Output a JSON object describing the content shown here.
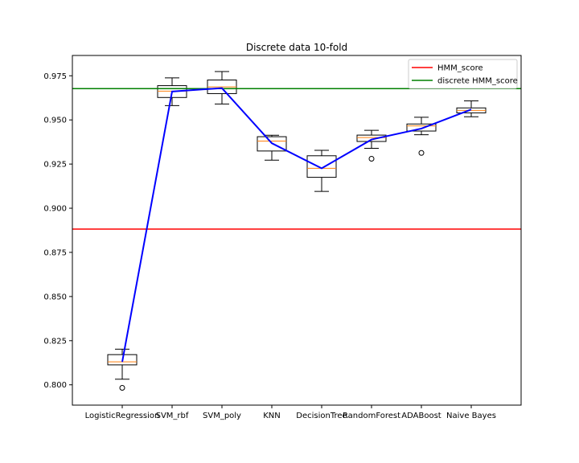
{
  "chart_data": {
    "type": "box",
    "title": "Discrete data 10-fold",
    "xlabel": "",
    "ylabel": "",
    "ylim": [
      0.7885,
      0.9865
    ],
    "yticks": [
      0.8,
      0.825,
      0.85,
      0.875,
      0.9,
      0.925,
      0.95,
      0.975
    ],
    "ytick_labels": [
      "0.800",
      "0.825",
      "0.850",
      "0.875",
      "0.900",
      "0.925",
      "0.950",
      "0.975"
    ],
    "categories": [
      "LogisticRegression",
      "SVM_rbf",
      "SVM_poly",
      "KNN",
      "DecisionTree",
      "RandomForest",
      "ADABoost",
      "Naive Bayes"
    ],
    "boxes": [
      {
        "whisker_low": 0.8032,
        "q1": 0.8113,
        "median": 0.813,
        "q3": 0.8171,
        "whisker_high": 0.8202,
        "outliers": [
          0.7983
        ]
      },
      {
        "whisker_low": 0.9581,
        "q1": 0.9627,
        "median": 0.9663,
        "q3": 0.9694,
        "whisker_high": 0.9738,
        "outliers": []
      },
      {
        "whisker_low": 0.959,
        "q1": 0.9649,
        "median": 0.9687,
        "q3": 0.9726,
        "whisker_high": 0.9774,
        "outliers": []
      },
      {
        "whisker_low": 0.9272,
        "q1": 0.9324,
        "median": 0.938,
        "q3": 0.9405,
        "whisker_high": 0.9413,
        "outliers": []
      },
      {
        "whisker_low": 0.9095,
        "q1": 0.9175,
        "median": 0.9226,
        "q3": 0.9297,
        "whisker_high": 0.9328,
        "outliers": []
      },
      {
        "whisker_low": 0.9339,
        "q1": 0.9378,
        "median": 0.94,
        "q3": 0.9414,
        "whisker_high": 0.9441,
        "outliers": [
          0.928
        ]
      },
      {
        "whisker_low": 0.9416,
        "q1": 0.9437,
        "median": 0.9466,
        "q3": 0.9477,
        "whisker_high": 0.9515,
        "outliers": [
          0.9313
        ]
      },
      {
        "whisker_low": 0.9518,
        "q1": 0.954,
        "median": 0.9554,
        "q3": 0.9568,
        "whisker_high": 0.9608,
        "outliers": []
      }
    ],
    "series": [
      {
        "type": "line",
        "values": [
          0.813,
          0.9661,
          0.968,
          0.9368,
          0.9226,
          0.9389,
          0.9451,
          0.9559
        ],
        "color": "#0000ff"
      }
    ],
    "hlines": [
      {
        "name": "HMM_score",
        "y": 0.8882,
        "color": "#ff0000"
      },
      {
        "name": "discrete HMM_score",
        "y": 0.9677,
        "color": "#008000"
      }
    ],
    "legend": {
      "placement": "top-right",
      "entries": [
        "HMM_score",
        "discrete HMM_score"
      ]
    },
    "grid": false,
    "colors": {
      "box": "#000000",
      "median": "#ff7f0e",
      "mean_line": "#0000ff",
      "hmm": "#ff0000",
      "discrete_hmm": "#008000"
    }
  }
}
